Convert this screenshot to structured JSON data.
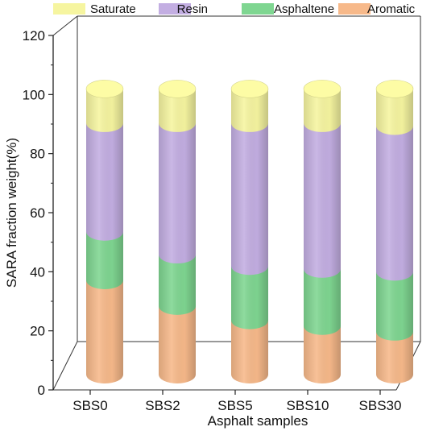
{
  "chart_data": {
    "type": "bar",
    "subtype": "stacked-3d-cylinder",
    "title": "",
    "xlabel": "Asphalt samples",
    "ylabel": "SARA fraction weight(%)",
    "ylim": [
      0,
      120
    ],
    "yticks": [
      0,
      20,
      40,
      60,
      80,
      100,
      120
    ],
    "categories": [
      "SBS0",
      "SBS2",
      "SBS5",
      "SBS10",
      "SBS30"
    ],
    "series": [
      {
        "name": "Aromatic",
        "color": "#f7b98a",
        "values": [
          33,
          24,
          19,
          17,
          15
        ]
      },
      {
        "name": "Asphaltene",
        "color": "#7fd691",
        "values": [
          17,
          18,
          19,
          20,
          21
        ]
      },
      {
        "name": "Resin",
        "color": "#c3aee2",
        "values": [
          38,
          46,
          50,
          51,
          51
        ]
      },
      {
        "name": "Saturate",
        "color": "#f6f5a0",
        "values": [
          12,
          12,
          12,
          12,
          13
        ]
      }
    ],
    "legend": {
      "placement": "top",
      "entries": [
        "Saturate",
        "Resin",
        "Asphaltene",
        "Aromatic"
      ],
      "colors": [
        "#f6f5a0",
        "#c3aee2",
        "#7fd691",
        "#f7b98a"
      ]
    },
    "grid": false
  }
}
